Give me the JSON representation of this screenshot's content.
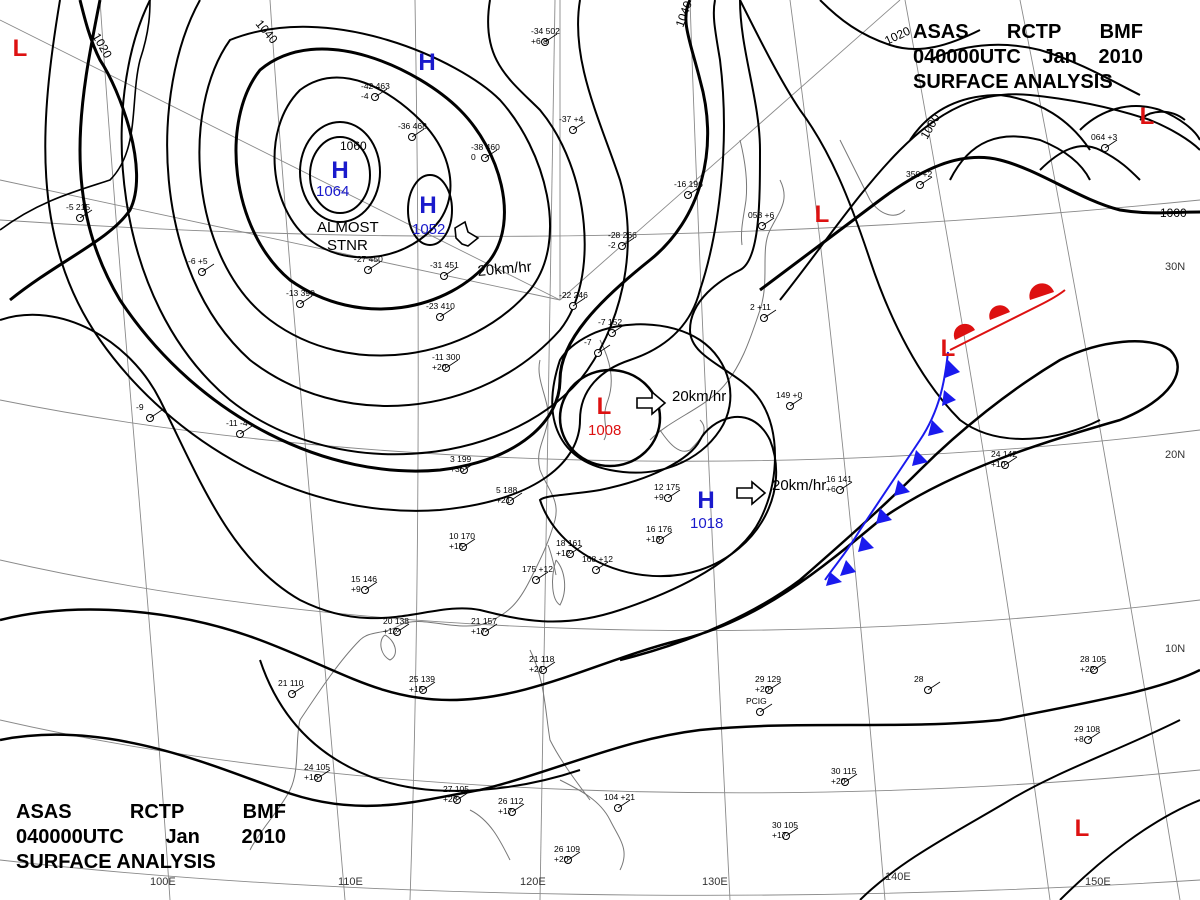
{
  "header": {
    "agency": "ASAS",
    "station": "RCTP",
    "code": "BMF",
    "time": "040000UTC",
    "month": "Jan",
    "year": "2010",
    "product": "SURFACE ANALYSIS"
  },
  "colors": {
    "high": "#1a1acc",
    "low": "#dd1111",
    "cold_front": "#1a1aee",
    "warm_front": "#dd1111",
    "isobar": "#000000",
    "grid": "#8a8a8a"
  },
  "pressure_centers": [
    {
      "type": "H",
      "value": "1064",
      "region": "Mongolia"
    },
    {
      "type": "H",
      "value": "1052",
      "region": "North China"
    },
    {
      "type": "H",
      "value": "1018",
      "region": "East China Sea / Ryukyu"
    },
    {
      "type": "H",
      "value": "",
      "region": "Siberia"
    },
    {
      "type": "L",
      "value": "1008",
      "region": "Yellow Sea"
    },
    {
      "type": "L",
      "value": "",
      "region": "Northwest corner"
    },
    {
      "type": "L",
      "value": "",
      "region": "Okhotsk"
    },
    {
      "type": "L",
      "value": "",
      "region": "North Pacific"
    },
    {
      "type": "L",
      "value": "",
      "region": "Frontal wave"
    },
    {
      "type": "L",
      "value": "",
      "region": "Southeast"
    }
  ],
  "annotations": [
    "ALMOST",
    "STNR"
  ],
  "motion_labels": [
    "20km/hr",
    "20km/hr",
    "20km/hr"
  ],
  "isobar_labels": [
    "1020",
    "1040",
    "1060",
    "1040",
    "1020",
    "1000",
    "1000"
  ],
  "longitude_labels": [
    "100E",
    "110E",
    "120E",
    "130E",
    "140E",
    "150E"
  ],
  "latitude_labels": [
    "30N",
    "20N",
    "10N"
  ],
  "stations": [
    {
      "label": "-34 502 +6 8"
    },
    {
      "label": "-42 463 -4"
    },
    {
      "label": "-36 468"
    },
    {
      "label": "-38 460 0"
    },
    {
      "label": "-37 +4"
    },
    {
      "label": "-28 266 -2"
    },
    {
      "label": "-22 246"
    },
    {
      "label": "-7 152"
    },
    {
      "label": "2 +11"
    },
    {
      "label": "149 +0"
    },
    {
      "label": "24 142 +10"
    },
    {
      "label": "16 141 +6"
    },
    {
      "label": "12 175 +9"
    },
    {
      "label": "16 176 +13"
    },
    {
      "label": "18 161 +12"
    },
    {
      "label": "10 170 +15"
    },
    {
      "label": "5 188 +21"
    },
    {
      "label": "3 199 +36"
    },
    {
      "label": "-11 300 +20"
    },
    {
      "label": "-23 410"
    },
    {
      "label": "-13 390"
    },
    {
      "label": "-27 450"
    },
    {
      "label": "-31 451"
    },
    {
      "label": "15 146 +9"
    },
    {
      "label": "20 138 +12"
    },
    {
      "label": "21 157 +17"
    },
    {
      "label": "21 110"
    },
    {
      "label": "25 139 +15"
    },
    {
      "label": "24 105 +16"
    },
    {
      "label": "27 105 +23"
    },
    {
      "label": "26 112 +17"
    },
    {
      "label": "26 109 +20"
    },
    {
      "label": "104 +21"
    },
    {
      "label": "29 129 +20"
    },
    {
      "label": "28"
    },
    {
      "label": "28 105 +22"
    },
    {
      "label": "29 108 +8"
    },
    {
      "label": "30 115 +20"
    },
    {
      "label": "30 105 +17"
    },
    {
      "label": "21 118 +21"
    },
    {
      "label": "168 +12"
    },
    {
      "label": "175 +12"
    },
    {
      "label": "-9"
    },
    {
      "label": "-11 -4"
    },
    {
      "label": "-6 +5"
    },
    {
      "label": "-7"
    },
    {
      "label": "058 +6"
    },
    {
      "label": "350 +2"
    },
    {
      "label": "064 +3"
    },
    {
      "label": "-16 196"
    },
    {
      "label": "-5 215"
    },
    {
      "label": "PCIG"
    }
  ]
}
